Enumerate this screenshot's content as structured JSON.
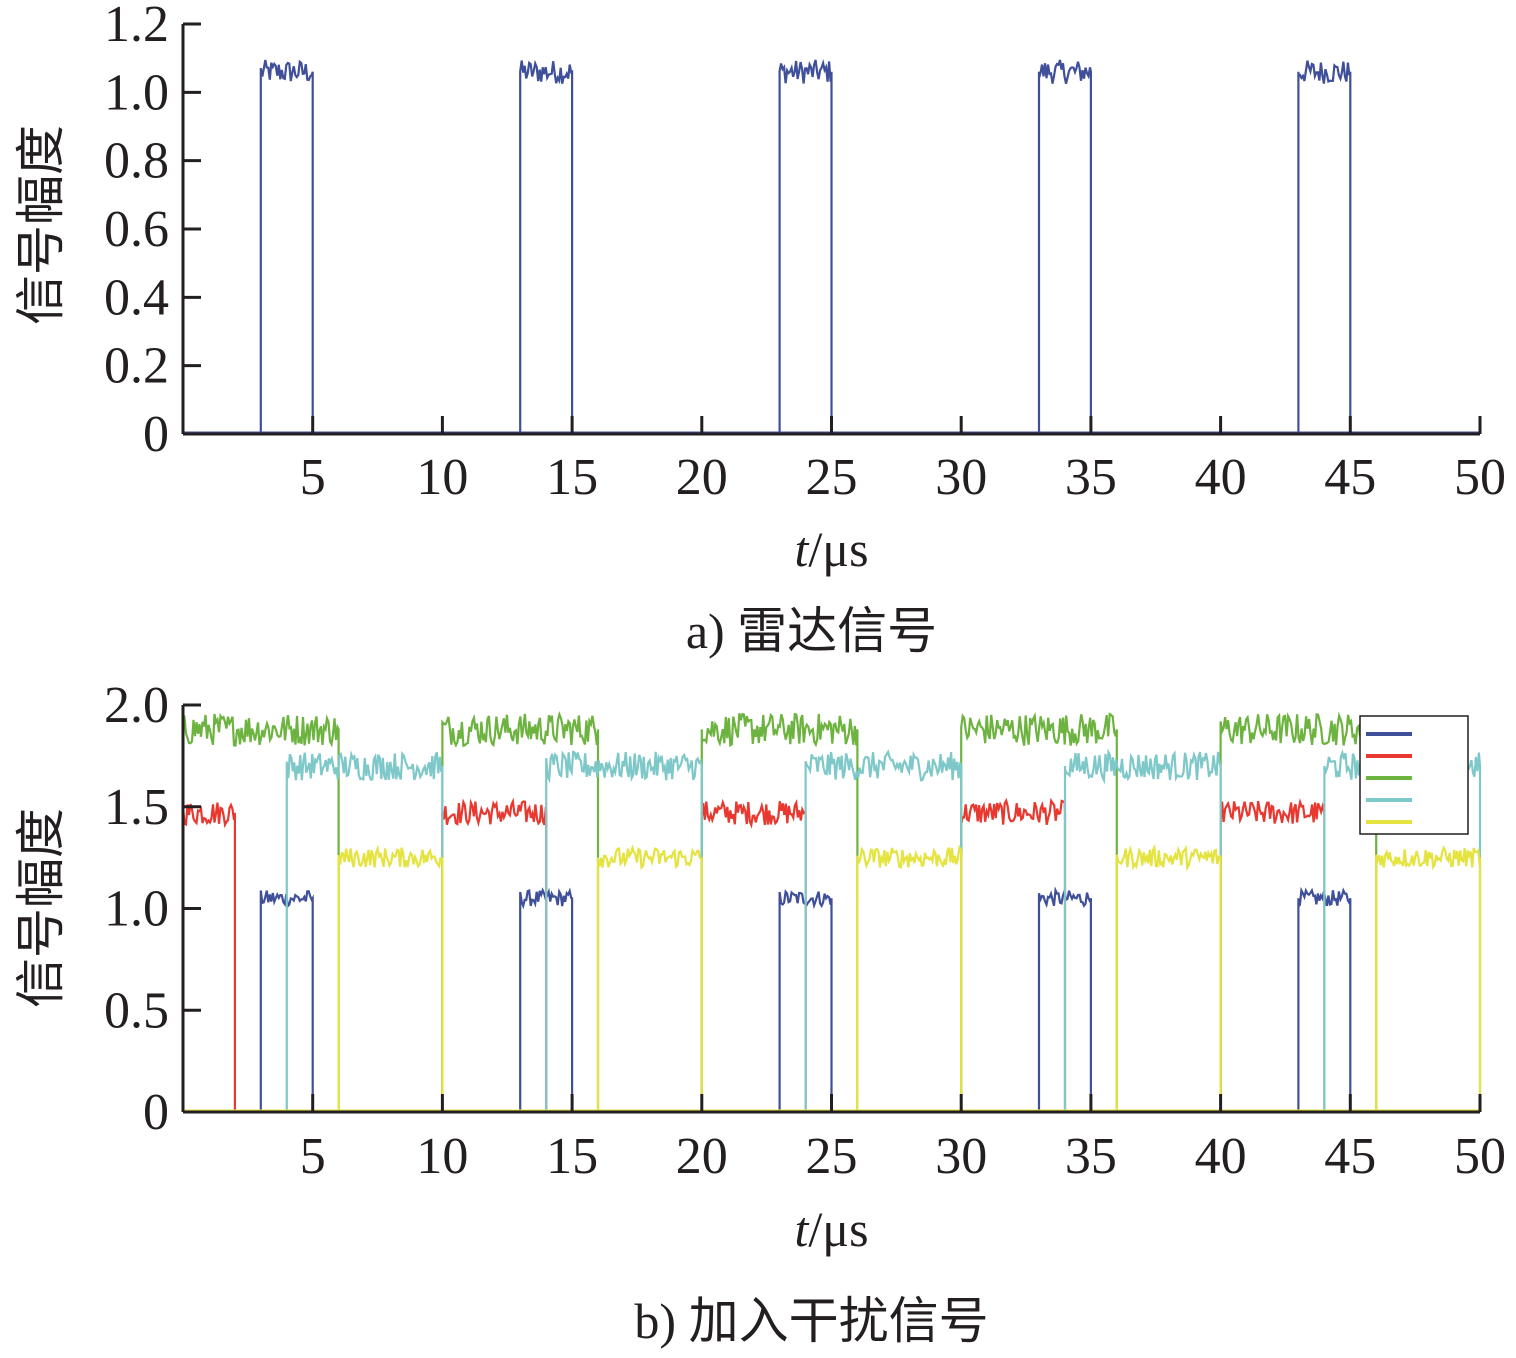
{
  "chart_data": [
    {
      "type": "line",
      "caption": "a) 雷达信号",
      "xlabel_italic": "t",
      "xlabel_unit": "/μs",
      "ylabel": "信号幅度",
      "xlim": [
        0,
        50
      ],
      "ylim": [
        0,
        1.2
      ],
      "x_ticks": [
        5,
        10,
        15,
        20,
        25,
        30,
        35,
        40,
        45,
        50
      ],
      "x_tick_labels": [
        "5",
        "10",
        "15",
        "20",
        "25",
        "30",
        "35",
        "40",
        "45",
        "50"
      ],
      "y_ticks": [
        0,
        0.2,
        0.4,
        0.6,
        0.8,
        1.0,
        1.2
      ],
      "y_tick_labels": [
        "0",
        "0.2",
        "0.4",
        "0.6",
        "0.8",
        "1.0",
        "1.2"
      ],
      "series": [
        {
          "color": "#3f4f9a",
          "level": 1.06,
          "noise": 0.035,
          "pulses": [
            [
              3,
              5
            ],
            [
              13,
              15
            ],
            [
              23,
              25
            ],
            [
              33,
              35
            ],
            [
              43,
              45
            ]
          ]
        }
      ]
    },
    {
      "type": "line",
      "caption": "b) 加入干扰信号",
      "xlabel_italic": "t",
      "xlabel_unit": "/μs",
      "ylabel": "信号幅度",
      "xlim": [
        0,
        50
      ],
      "ylim": [
        0,
        2.0
      ],
      "x_ticks": [
        5,
        10,
        15,
        20,
        25,
        30,
        35,
        40,
        45,
        50
      ],
      "x_tick_labels": [
        "5",
        "10",
        "15",
        "20",
        "25",
        "30",
        "35",
        "40",
        "45",
        "50"
      ],
      "y_ticks": [
        0,
        0.5,
        1.0,
        1.5,
        2.0
      ],
      "y_tick_labels": [
        "0",
        "0.5",
        "1.0",
        "1.5",
        "2.0"
      ],
      "legend_position": "top-right",
      "series": [
        {
          "color": "#3f4f9a",
          "level": 1.05,
          "noise": 0.04,
          "pulses": [
            [
              3,
              5
            ],
            [
              13,
              15
            ],
            [
              23,
              25
            ],
            [
              33,
              35
            ],
            [
              43,
              45
            ]
          ]
        },
        {
          "color": "#e8382f",
          "level": 1.47,
          "noise": 0.06,
          "pulses": [
            [
              0,
              2
            ],
            [
              10,
              14
            ],
            [
              20,
              24
            ],
            [
              30,
              34
            ],
            [
              40,
              44
            ]
          ]
        },
        {
          "color": "#6db33f",
          "level": 1.88,
          "noise": 0.08,
          "pulses": [
            [
              0,
              6
            ],
            [
              10,
              16
            ],
            [
              20,
              26
            ],
            [
              30,
              36
            ],
            [
              40,
              46
            ]
          ]
        },
        {
          "color": "#7ec8c9",
          "level": 1.7,
          "noise": 0.07,
          "pulses": [
            [
              4,
              10
            ],
            [
              14,
              20
            ],
            [
              24,
              30
            ],
            [
              34,
              40
            ],
            [
              44,
              50
            ]
          ]
        },
        {
          "color": "#e4e33f",
          "level": 1.25,
          "noise": 0.05,
          "pulses": [
            [
              6,
              10
            ],
            [
              16,
              20
            ],
            [
              26,
              30
            ],
            [
              36,
              40
            ],
            [
              46,
              50
            ]
          ]
        }
      ]
    }
  ]
}
